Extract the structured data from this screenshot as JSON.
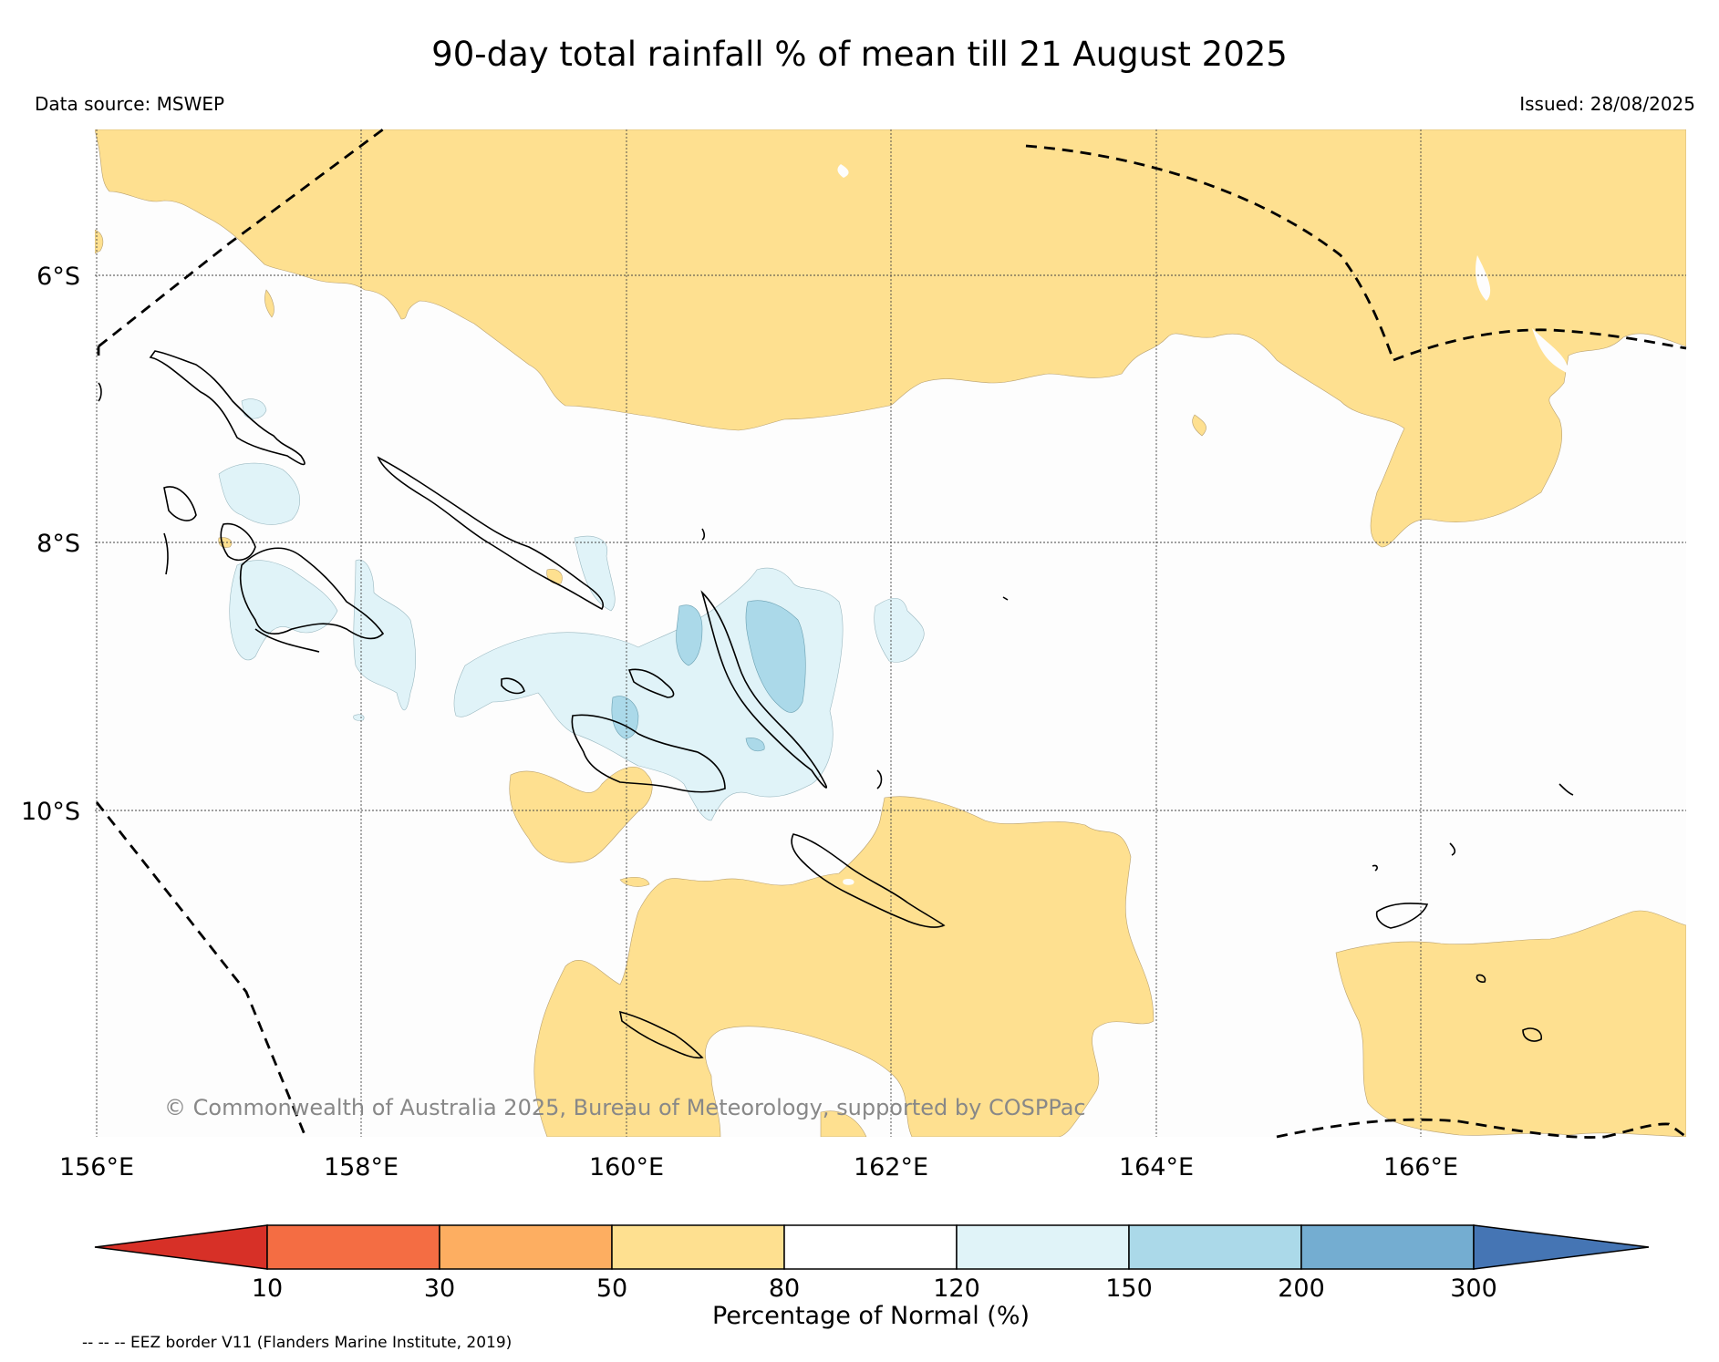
{
  "title": "90-day total rainfall % of mean till 21 August 2025",
  "data_source": "Data source: MSWEP",
  "issued": "Issued: 28/08/2025",
  "copyright": "© Commonwealth of Australia 2025, Bureau of Meteorology, supported by COSPPac",
  "map": {
    "lon_range": [
      156,
      168
    ],
    "lat_range": [
      -12.2,
      -4.8
    ],
    "lon_ticks": [
      "156°E",
      "158°E",
      "160°E",
      "162°E",
      "164°E",
      "166°E"
    ],
    "lat_ticks": [
      "6°S",
      "8°S",
      "10°S"
    ],
    "gridlines": true
  },
  "colorbar": {
    "label": "Percentage of Normal (%)",
    "boundaries": [
      "10",
      "30",
      "50",
      "80",
      "120",
      "150",
      "200",
      "300"
    ],
    "colors": {
      "below_10": "#d73027",
      "10_30": "#f46d43",
      "30_50": "#fdae61",
      "50_80": "#fee090",
      "80_120": "#ffffff",
      "120_150": "#e0f3f8",
      "150_200": "#abd9e9",
      "200_300": "#74add1",
      "above_300": "#4575b4"
    }
  },
  "legend_note": "-- -- -- EEZ border V11 (Flanders Marine Institute, 2019)"
}
